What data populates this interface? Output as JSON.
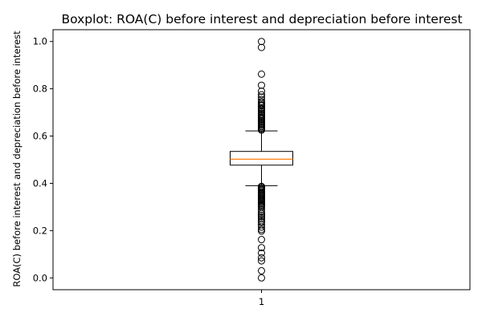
{
  "chart_data": {
    "type": "boxplot",
    "title": "Boxplot:  ROA(C) before interest and depreciation before interest",
    "xlabel": "",
    "ylabel": "ROA(C) before interest and depreciation before interest",
    "categories": [
      "1"
    ],
    "ylim": [
      -0.05,
      1.05
    ],
    "yticks": [
      "0.0",
      "0.2",
      "0.4",
      "0.6",
      "0.8",
      "1.0"
    ],
    "grid": false,
    "colors": {
      "median": "#ff7f0e",
      "box": "#000000",
      "outlier": "#000000"
    },
    "box": {
      "q1": 0.477,
      "median": 0.502,
      "q3": 0.535,
      "whisker_low": 0.39,
      "whisker_high": 0.622
    },
    "outliers_high": [
      1.0,
      0.975,
      0.862,
      0.815,
      0.79,
      0.775,
      0.765,
      0.755,
      0.745,
      0.738,
      0.732,
      0.728,
      0.72,
      0.715,
      0.71,
      0.703,
      0.697,
      0.69,
      0.685,
      0.68,
      0.675,
      0.67,
      0.665,
      0.66,
      0.655,
      0.65,
      0.645,
      0.64,
      0.635,
      0.63,
      0.625
    ],
    "outliers_low": [
      0.387,
      0.383,
      0.378,
      0.374,
      0.37,
      0.365,
      0.36,
      0.356,
      0.352,
      0.348,
      0.343,
      0.338,
      0.334,
      0.33,
      0.325,
      0.32,
      0.315,
      0.31,
      0.305,
      0.3,
      0.29,
      0.28,
      0.272,
      0.265,
      0.258,
      0.25,
      0.242,
      0.235,
      0.225,
      0.215,
      0.205,
      0.198,
      0.162,
      0.128,
      0.105,
      0.085,
      0.072,
      0.03,
      0.0
    ]
  }
}
